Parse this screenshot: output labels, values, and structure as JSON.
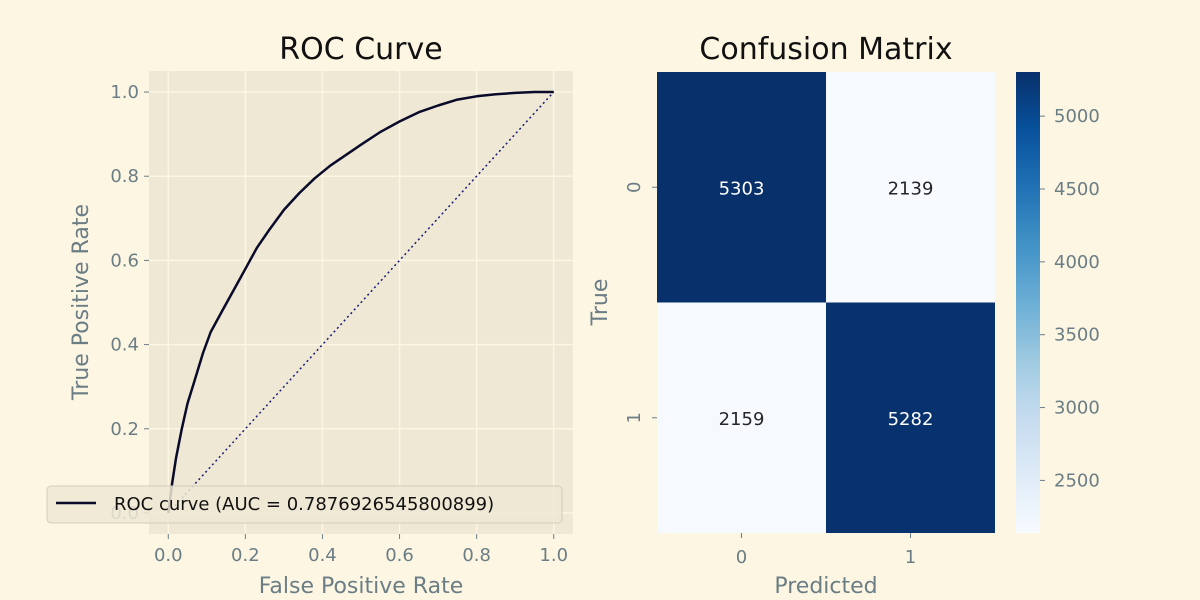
{
  "chart_data": [
    {
      "type": "line",
      "title": "ROC Curve",
      "xlabel": "False Positive Rate",
      "ylabel": "True Positive Rate",
      "xlim": [
        -0.05,
        1.05
      ],
      "ylim": [
        -0.05,
        1.05
      ],
      "xticks": [
        "0.0",
        "0.2",
        "0.4",
        "0.6",
        "0.8",
        "1.0"
      ],
      "yticks": [
        "0.0",
        "0.2",
        "0.4",
        "0.6",
        "0.8",
        "1.0"
      ],
      "grid": true,
      "legend_position": "lower-left",
      "series": [
        {
          "name": "ROC curve (AUC = 0.7876926545800899)",
          "color": "#0a0a2a",
          "style": "solid",
          "x": [
            0.0,
            0.01,
            0.02,
            0.035,
            0.05,
            0.07,
            0.09,
            0.11,
            0.14,
            0.17,
            0.2,
            0.23,
            0.26,
            0.3,
            0.34,
            0.38,
            0.42,
            0.46,
            0.5,
            0.55,
            0.6,
            0.65,
            0.7,
            0.75,
            0.8,
            0.85,
            0.9,
            0.95,
            1.0
          ],
          "y": [
            0.0,
            0.07,
            0.13,
            0.2,
            0.26,
            0.32,
            0.38,
            0.43,
            0.48,
            0.53,
            0.58,
            0.63,
            0.67,
            0.72,
            0.76,
            0.795,
            0.825,
            0.85,
            0.875,
            0.905,
            0.93,
            0.952,
            0.968,
            0.982,
            0.99,
            0.995,
            0.998,
            1.0,
            1.0
          ]
        },
        {
          "name": "",
          "color": "#1a1a7a",
          "style": "dotted",
          "x": [
            0.0,
            1.0
          ],
          "y": [
            0.0,
            1.0
          ]
        }
      ]
    },
    {
      "type": "heatmap",
      "title": "Confusion Matrix",
      "xlabel": "Predicted",
      "ylabel": "True",
      "xticks": [
        "0",
        "1"
      ],
      "yticks": [
        "0",
        "1"
      ],
      "values": [
        [
          5303,
          2139
        ],
        [
          2159,
          5282
        ]
      ],
      "colormap": "Blues",
      "colorbar": {
        "min": 2139,
        "max": 5303,
        "ticks": [
          2500,
          3000,
          3500,
          4000,
          4500,
          5000
        ],
        "tick_labels": [
          "2500",
          "3000",
          "3500",
          "4000",
          "4500",
          "5000"
        ]
      }
    }
  ]
}
